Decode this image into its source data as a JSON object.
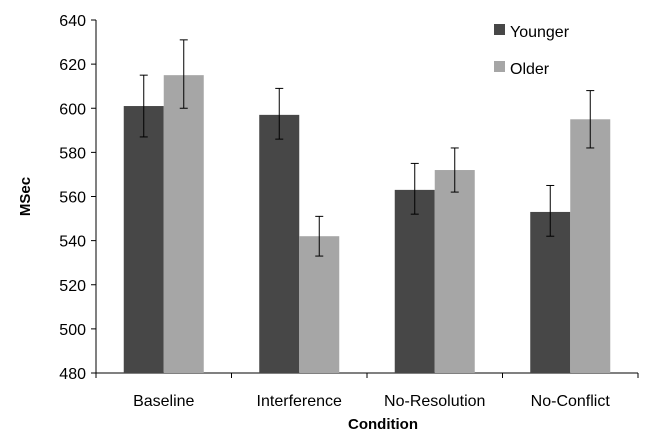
{
  "chart_data": {
    "type": "bar",
    "title": "",
    "xlabel": "Condition",
    "ylabel": "MSec",
    "categories": [
      "Baseline",
      "Interference",
      "No-Resolution",
      "No-Conflict"
    ],
    "ylim": [
      480,
      640
    ],
    "yticks": [
      480,
      500,
      520,
      540,
      560,
      580,
      600,
      620,
      640
    ],
    "grid": false,
    "legend_position": "top-right",
    "series": [
      {
        "name": "Younger",
        "color": "#474747",
        "values": [
          601,
          597,
          563,
          553
        ],
        "error_low": [
          587,
          586,
          552,
          542
        ],
        "error_high": [
          615,
          609,
          575,
          565
        ]
      },
      {
        "name": "Older",
        "color": "#a6a6a6",
        "values": [
          615,
          542,
          572,
          595
        ],
        "error_low": [
          600,
          533,
          562,
          582
        ],
        "error_high": [
          631,
          551,
          582,
          608
        ]
      }
    ]
  }
}
